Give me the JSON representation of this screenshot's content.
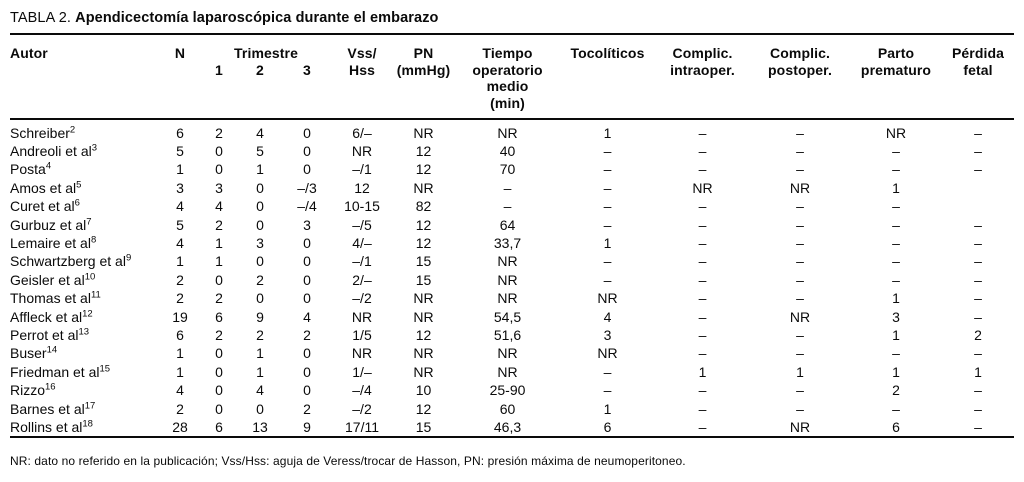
{
  "title": {
    "prefix": "TABLA 2.",
    "main": "Apendicectomía laparoscópica durante el embarazo"
  },
  "table": {
    "headers": {
      "autor": "Autor",
      "n": "N",
      "trimestre": "Trimestre",
      "trimestre_cols": [
        "1",
        "2",
        "3"
      ],
      "vss_hss": [
        "Vss/",
        "Hss"
      ],
      "pn": [
        "PN",
        "(mmHg)"
      ],
      "tiempo": [
        "Tiempo",
        "operatorio",
        "medio",
        "(min)"
      ],
      "tocoliticos": "Tocolíticos",
      "complic_intraoper": [
        "Complic.",
        "intraoper."
      ],
      "complic_postoper": [
        "Complic.",
        "postoper."
      ],
      "parto_prematuro": [
        "Parto",
        "prematuro"
      ],
      "perdida_fetal": [
        "Pérdida",
        "fetal"
      ]
    },
    "rows": [
      {
        "autor": "Schreiber",
        "ref": "2",
        "cells": [
          "6",
          "2",
          "4",
          "0",
          "6/–",
          "NR",
          "NR",
          "1",
          "–",
          "–",
          "NR",
          "–"
        ]
      },
      {
        "autor": "Andreoli et al",
        "ref": "3",
        "cells": [
          "5",
          "0",
          "5",
          "0",
          "NR",
          "12",
          "40",
          "–",
          "–",
          "–",
          "–",
          "–"
        ]
      },
      {
        "autor": "Posta",
        "ref": "4",
        "cells": [
          "1",
          "0",
          "1",
          "0",
          "–/1",
          "12",
          "70",
          "–",
          "–",
          "–",
          "–",
          "–"
        ]
      },
      {
        "autor": "Amos et al",
        "ref": "5",
        "cells": [
          "3",
          "3",
          "0",
          "–/3",
          "12",
          "NR",
          "–",
          "–",
          "NR",
          "NR",
          "1",
          ""
        ]
      },
      {
        "autor": "Curet et al",
        "ref": "6",
        "cells": [
          "4",
          "4",
          "0",
          "–/4",
          "10-15",
          "82",
          "–",
          "–",
          "–",
          "–",
          "–",
          ""
        ]
      },
      {
        "autor": "Gurbuz et al",
        "ref": "7",
        "cells": [
          "5",
          "2",
          "0",
          "3",
          "–/5",
          "12",
          "64",
          "–",
          "–",
          "–",
          "–",
          "–"
        ]
      },
      {
        "autor": "Lemaire et al",
        "ref": "8",
        "cells": [
          "4",
          "1",
          "3",
          "0",
          "4/–",
          "12",
          "33,7",
          "1",
          "–",
          "–",
          "–",
          "–"
        ]
      },
      {
        "autor": "Schwartzberg et al",
        "ref": "9",
        "cells": [
          "1",
          "1",
          "0",
          "0",
          "–/1",
          "15",
          "NR",
          "–",
          "–",
          "–",
          "–",
          "–"
        ]
      },
      {
        "autor": "Geisler et al",
        "ref": "10",
        "cells": [
          "2",
          "0",
          "2",
          "0",
          "2/–",
          "15",
          "NR",
          "–",
          "–",
          "–",
          "–",
          "–"
        ]
      },
      {
        "autor": "Thomas et al",
        "ref": "11",
        "cells": [
          "2",
          "2",
          "0",
          "0",
          "–/2",
          "NR",
          "NR",
          "NR",
          "–",
          "–",
          "1",
          "–"
        ]
      },
      {
        "autor": "Affleck et al",
        "ref": "12",
        "cells": [
          "19",
          "6",
          "9",
          "4",
          "NR",
          "NR",
          "54,5",
          "4",
          "–",
          "NR",
          "3",
          "–"
        ]
      },
      {
        "autor": "Perrot et al",
        "ref": "13",
        "cells": [
          "6",
          "2",
          "2",
          "2",
          "1/5",
          "12",
          "51,6",
          "3",
          "–",
          "–",
          "1",
          "2"
        ]
      },
      {
        "autor": "Buser",
        "ref": "14",
        "cells": [
          "1",
          "0",
          "1",
          "0",
          "NR",
          "NR",
          "NR",
          "NR",
          "–",
          "–",
          "–",
          "–"
        ]
      },
      {
        "autor": "Friedman et al",
        "ref": "15",
        "cells": [
          "1",
          "0",
          "1",
          "0",
          "1/–",
          "NR",
          "NR",
          "–",
          "1",
          "1",
          "1",
          "1"
        ]
      },
      {
        "autor": "Rizzo",
        "ref": "16",
        "cells": [
          "4",
          "0",
          "4",
          "0",
          "–/4",
          "10",
          "25-90",
          "–",
          "–",
          "–",
          "2",
          "–"
        ]
      },
      {
        "autor": "Barnes et al",
        "ref": "17",
        "cells": [
          "2",
          "0",
          "0",
          "2",
          "–/2",
          "12",
          "60",
          "1",
          "–",
          "–",
          "–",
          "–"
        ]
      },
      {
        "autor": "Rollins et al",
        "ref": "18",
        "cells": [
          "28",
          "6",
          "13",
          "9",
          "17/11",
          "15",
          "46,3",
          "6",
          "–",
          "NR",
          "6",
          "–"
        ]
      }
    ]
  },
  "footnote": "NR: dato no referido en la publicación; Vss/Hss: aguja de Veress/trocar de Hasson, PN: presión máxima de neumoperitoneo."
}
